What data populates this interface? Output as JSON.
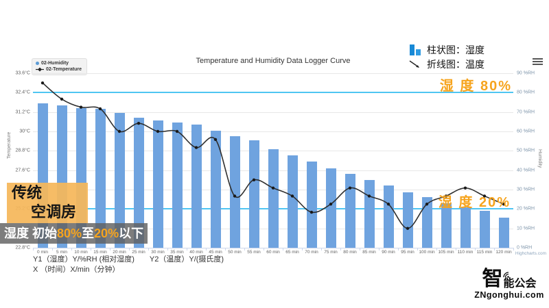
{
  "ui_legend": {
    "bar_label": "柱状图：湿度",
    "line_label": "折线图：温度"
  },
  "annotations": {
    "humidity80_label": "湿 度 80%",
    "humidity20_label": "湿 度 20%",
    "tag_line1": "传统",
    "tag_line2": "空调房",
    "caption_parts": [
      {
        "text": "湿度 初始",
        "color": "#ffffff"
      },
      {
        "text": "80%",
        "color": "#f6a41e"
      },
      {
        "text": "至",
        "color": "#ffffff"
      },
      {
        "text": "20%",
        "color": "#f6a41e"
      },
      {
        "text": "以下",
        "color": "#ffffff"
      }
    ],
    "accent_orange": "#f6a41e",
    "plotline_color": "#4fc5f2"
  },
  "footer": {
    "note_y1": "Y1（湿度）Y/%RH (相对湿度)",
    "note_y2": "Y2（温度）Y/(摄氏度)",
    "note_x": "X （时间）X/min（分钟）",
    "credit": "Highcharts.com"
  },
  "logo": {
    "name_big": "智",
    "name_rest": "能公会",
    "domain": "ZNgonghui.com"
  },
  "chart_data": {
    "type": "bar",
    "subtype": "column + spline combo",
    "title": "Temperature and Humidity Data Logger Curve",
    "categories": [
      "0 min",
      "5 min",
      "10 min",
      "15 min",
      "20 min",
      "25 min",
      "30 min",
      "35 min",
      "40 min",
      "45 min",
      "50 min",
      "55 min",
      "60 min",
      "65 min",
      "70 min",
      "75 min",
      "80 min",
      "85 min",
      "90 min",
      "95 min",
      "100 min",
      "105 min",
      "110 min",
      "115 min",
      "120 min"
    ],
    "series": [
      {
        "name": "02-Humidity",
        "type": "bar",
        "axis": "y2",
        "color": "#6fa3df",
        "values": [
          74.5,
          73.5,
          72,
          71.5,
          69.5,
          67,
          65.5,
          64.5,
          63.5,
          60.5,
          57.5,
          55.5,
          51,
          47.5,
          44.5,
          41,
          38,
          35,
          32,
          28.5,
          26,
          23,
          21,
          19,
          15.5
        ]
      },
      {
        "name": "02-Temperature",
        "type": "line",
        "axis": "y1",
        "color": "#2f2f2f",
        "values": [
          33,
          32,
          31.5,
          31.4,
          30,
          30.5,
          30,
          30,
          29,
          29.5,
          26,
          27,
          26.5,
          26,
          25,
          25.5,
          26.5,
          26,
          25.5,
          24,
          25.5,
          26,
          26.5,
          26,
          25.5
        ]
      }
    ],
    "y1": {
      "title": "Temperature",
      "min": 22.8,
      "max": 33.6,
      "tick_interval": 1.2,
      "unit": "°C",
      "tick_labels": [
        "33.6°C",
        "32.4°C",
        "31.2°C",
        "30°C",
        "28.8°C",
        "27.6°C",
        "26.4°C",
        "25.2°C",
        "24°C",
        "22.8°C"
      ]
    },
    "y2": {
      "title": "Humidity",
      "min": 0,
      "max": 90,
      "tick_interval": 10,
      "unit": "%RH",
      "tick_labels": [
        "90 %RH",
        "80 %RH",
        "70 %RH",
        "60 %RH",
        "50 %RH",
        "40 %RH",
        "30 %RH",
        "20 %RH",
        "10 %RH",
        "0 %RH"
      ]
    },
    "plotlines": [
      {
        "axis": "y2",
        "value": 80,
        "label": "湿 度 80%"
      },
      {
        "axis": "y2",
        "value": 20,
        "label": "湿 度 20%"
      }
    ],
    "xlabel": "X/min",
    "grid": true,
    "legend_position": "top-left-inside"
  }
}
